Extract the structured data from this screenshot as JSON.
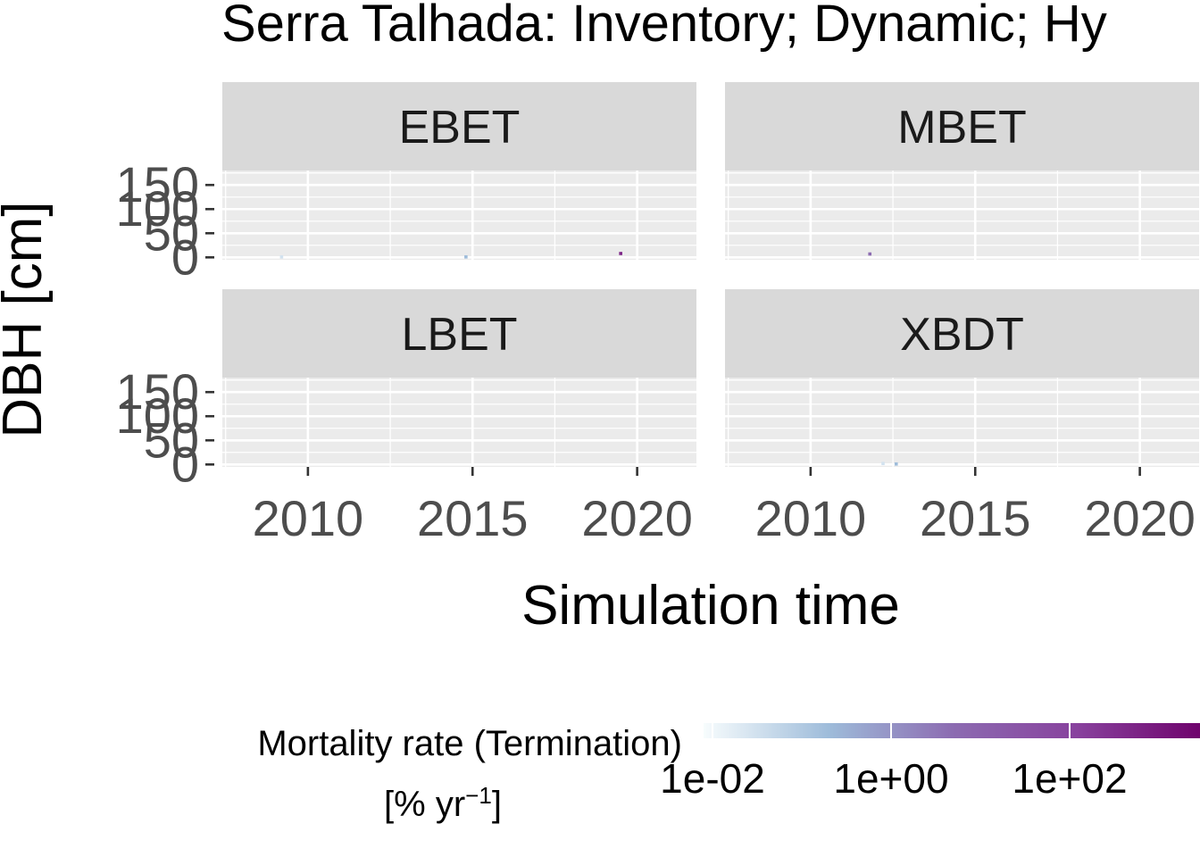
{
  "chart_data": {
    "type": "heatmap",
    "title": "Serra Talhada: Inventory; Dynamic; Hy",
    "xlabel": "Simulation time",
    "ylabel": "DBH [cm]",
    "x_ticks": [
      2010,
      2015,
      2020
    ],
    "y_ticks": [
      0,
      50,
      100,
      150
    ],
    "xlim": [
      2007.4,
      2021.8
    ],
    "ylim": [
      -5,
      180
    ],
    "grid": true,
    "facets": [
      {
        "name": "EBET",
        "row": 0,
        "col": 0,
        "cells": [
          {
            "x": 2009.2,
            "y": 1,
            "rate": 0.03
          },
          {
            "x": 2014.8,
            "y": 1,
            "rate": 0.2
          },
          {
            "x": 2019.5,
            "y": 8,
            "rate": 500
          }
        ]
      },
      {
        "name": "MBET",
        "row": 0,
        "col": 1,
        "cells": [
          {
            "x": 2011.8,
            "y": 7,
            "rate": 5
          }
        ]
      },
      {
        "name": "LBET",
        "row": 1,
        "col": 0,
        "cells": []
      },
      {
        "name": "XBDT",
        "row": 1,
        "col": 1,
        "cells": [
          {
            "x": 2012.2,
            "y": 2,
            "rate": 0.03
          },
          {
            "x": 2012.6,
            "y": 1,
            "rate": 0.2
          }
        ]
      }
    ],
    "legend": {
      "title_line1": "Mortality rate (Termination)",
      "title_line2_prefix": "[% yr",
      "title_line2_sup": "−1",
      "title_line2_suffix": "]",
      "scale": "log10",
      "range_log10": [
        -2.1,
        3.5
      ],
      "ticks": [
        "1e-02",
        "1e+00",
        "1e+02"
      ],
      "tick_log10": [
        -2,
        0,
        2
      ],
      "colors": [
        "#f7fcfd",
        "#9ebcda",
        "#8c6bb1",
        "#88419d",
        "#6e016b"
      ],
      "position": "bottom"
    }
  }
}
